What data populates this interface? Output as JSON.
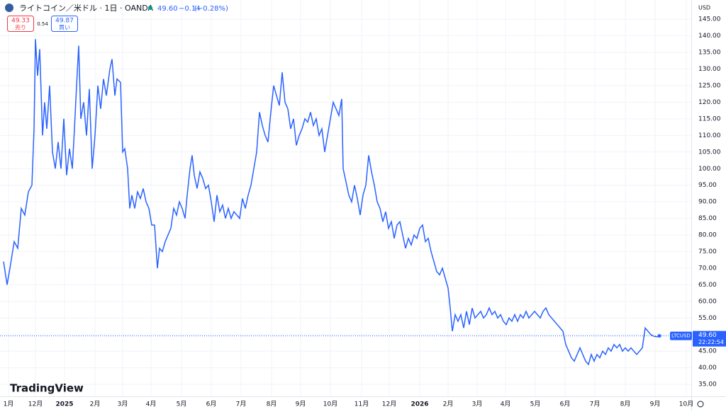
{
  "header": {
    "symbol": "ライトコイン／米ドル · 1日 · OANDA",
    "price": "49.60",
    "change": "−0.14",
    "change_pct": "(−0.28%)",
    "sell": "49.33",
    "sell_label": "売り",
    "spread": "0.54",
    "buy": "49.87",
    "buy_label": "買い",
    "currency": "USD",
    "logo": "TradingView",
    "ticker": "LTCUSD",
    "time": "22:22:54"
  },
  "chart_data": {
    "type": "line",
    "color": "#2962ff",
    "grid": true,
    "xlim": [
      0,
      975
    ],
    "ylim": [
      31.4,
      150.8
    ],
    "last_price": {
      "value": 49.6,
      "label": "49.60"
    },
    "xticks": [
      {
        "value": 12,
        "label": "1月"
      },
      {
        "value": 50,
        "label": "12月"
      },
      {
        "value": 91,
        "label": "2025"
      },
      {
        "value": 134,
        "label": "2月"
      },
      {
        "value": 173,
        "label": "3月"
      },
      {
        "value": 213,
        "label": "4月"
      },
      {
        "value": 256,
        "label": "5月"
      },
      {
        "value": 298,
        "label": "6月"
      },
      {
        "value": 340,
        "label": "7月"
      },
      {
        "value": 383,
        "label": "8月"
      },
      {
        "value": 424,
        "label": "9月"
      },
      {
        "value": 466,
        "label": "10月"
      },
      {
        "value": 510,
        "label": "11月"
      },
      {
        "value": 549,
        "label": "12月"
      },
      {
        "value": 592,
        "label": "2026"
      },
      {
        "value": 632,
        "label": "2月"
      },
      {
        "value": 673,
        "label": "3月"
      },
      {
        "value": 713,
        "label": "4月"
      },
      {
        "value": 755,
        "label": "5月"
      },
      {
        "value": 797,
        "label": "6月"
      },
      {
        "value": 839,
        "label": "7月"
      },
      {
        "value": 882,
        "label": "8月"
      },
      {
        "value": 924,
        "label": "9月"
      },
      {
        "value": 968,
        "label": "10月"
      }
    ],
    "yticks": [
      {
        "value": 35,
        "label": "35.00"
      },
      {
        "value": 40,
        "label": "40.00"
      },
      {
        "value": 45,
        "label": "45.00"
      },
      {
        "value": 50,
        "label": "50.00"
      },
      {
        "value": 55,
        "label": "55.00"
      },
      {
        "value": 60,
        "label": "60.00"
      },
      {
        "value": 65,
        "label": "65.00"
      },
      {
        "value": 70,
        "label": "70.00"
      },
      {
        "value": 75,
        "label": "75.00"
      },
      {
        "value": 80,
        "label": "80.00"
      },
      {
        "value": 85,
        "label": "85.00"
      },
      {
        "value": 90,
        "label": "90.00"
      },
      {
        "value": 95,
        "label": "95.00"
      },
      {
        "value": 100,
        "label": "100.00"
      },
      {
        "value": 105,
        "label": "105.00"
      },
      {
        "value": 110,
        "label": "110.00"
      },
      {
        "value": 115,
        "label": "115.00"
      },
      {
        "value": 120,
        "label": "120.00"
      },
      {
        "value": 125,
        "label": "125.00"
      },
      {
        "value": 130,
        "label": "130.00"
      },
      {
        "value": 135,
        "label": "135.00"
      },
      {
        "value": 140,
        "label": "140.00"
      },
      {
        "value": 145,
        "label": "145.00"
      }
    ],
    "x": [
      5,
      10,
      14,
      20,
      25,
      30,
      35,
      40,
      45,
      48,
      50,
      53,
      56,
      60,
      63,
      66,
      70,
      74,
      78,
      82,
      86,
      90,
      94,
      98,
      102,
      105,
      108,
      111,
      114,
      118,
      122,
      126,
      130,
      134,
      138,
      142,
      146,
      150,
      155,
      158,
      162,
      165,
      170,
      173,
      176,
      180,
      183,
      186,
      190,
      194,
      198,
      202,
      206,
      210,
      214,
      218,
      222,
      225,
      229,
      233,
      237,
      241,
      245,
      249,
      253,
      257,
      261,
      264,
      268,
      271,
      274,
      278,
      282,
      286,
      290,
      294,
      298,
      302,
      306,
      310,
      314,
      318,
      322,
      326,
      330,
      334,
      338,
      342,
      346,
      350,
      354,
      358,
      362,
      366,
      370,
      374,
      378,
      382,
      386,
      390,
      394,
      398,
      402,
      406,
      410,
      414,
      418,
      422,
      426,
      430,
      434,
      438,
      442,
      446,
      450,
      454,
      458,
      462,
      466,
      470,
      474,
      478,
      482,
      484,
      488,
      492,
      496,
      500,
      504,
      508,
      512,
      516,
      520,
      524,
      528,
      532,
      536,
      540,
      544,
      548,
      552,
      556,
      560,
      564,
      568,
      572,
      576,
      580,
      584,
      588,
      592,
      596,
      600,
      604,
      608,
      612,
      616,
      620,
      624,
      628,
      632,
      635,
      638,
      642,
      646,
      650,
      654,
      658,
      662,
      666,
      670,
      674,
      678,
      682,
      686,
      690,
      694,
      698,
      702,
      706,
      710,
      714,
      718,
      722,
      726,
      730,
      734,
      738,
      742,
      746,
      750,
      754,
      758,
      762,
      766,
      770,
      774,
      778,
      782,
      786,
      790,
      794,
      798,
      802,
      806,
      810,
      814,
      818,
      822,
      826,
      830,
      834,
      838,
      842,
      846,
      850,
      854,
      858,
      862,
      866,
      870,
      874,
      878,
      882,
      886,
      890,
      894,
      898,
      902,
      906,
      910,
      914,
      918,
      922,
      926,
      930
    ],
    "values": [
      72,
      65,
      70,
      78,
      76,
      88,
      86,
      93,
      95,
      112,
      139,
      128,
      136,
      110,
      120,
      112,
      125,
      105,
      100,
      108,
      100,
      115,
      98,
      106,
      100,
      112,
      125,
      137,
      115,
      120,
      110,
      124,
      100,
      110,
      125,
      118,
      127,
      122,
      130,
      133,
      122,
      127,
      126,
      105,
      106,
      100,
      88,
      92,
      88,
      93,
      91,
      94,
      90,
      88,
      83,
      83,
      70,
      76,
      75,
      78,
      80,
      82,
      88,
      86,
      90,
      88,
      85,
      92,
      100,
      104,
      98,
      94,
      99,
      97,
      94,
      95,
      90,
      84,
      92,
      87,
      89,
      85,
      88,
      85,
      87,
      86,
      85,
      91,
      88,
      92,
      95,
      100,
      105,
      117,
      113,
      110,
      108,
      117,
      125,
      122,
      119,
      129,
      120,
      118,
      112,
      115,
      107,
      110,
      112,
      115,
      114,
      117,
      113,
      115,
      110,
      112,
      105,
      110,
      115,
      120,
      118,
      116,
      121,
      100,
      96,
      92,
      90,
      95,
      91,
      86,
      92,
      95,
      104,
      99,
      95,
      90,
      88,
      84,
      87,
      82,
      84,
      79,
      83,
      84,
      80,
      76,
      79,
      77,
      80,
      79,
      82,
      83,
      78,
      79,
      75,
      72,
      69,
      68,
      70,
      67,
      64,
      58,
      51,
      56,
      54,
      56,
      52,
      57,
      53,
      58,
      55,
      56,
      57,
      55,
      56,
      58,
      56,
      57,
      55,
      56,
      54,
      53,
      55,
      54,
      56,
      54,
      56,
      55,
      57,
      55,
      56,
      57,
      56,
      55,
      57,
      58,
      56,
      55,
      54,
      53,
      52,
      51,
      47,
      45,
      43,
      42,
      44,
      46,
      44,
      42,
      41,
      44,
      42,
      44,
      43,
      45,
      44,
      46,
      45,
      47,
      46,
      47,
      45,
      46,
      45,
      46,
      45,
      44,
      45,
      46,
      52,
      51,
      50,
      49.5,
      49.3,
      49.6
    ]
  }
}
